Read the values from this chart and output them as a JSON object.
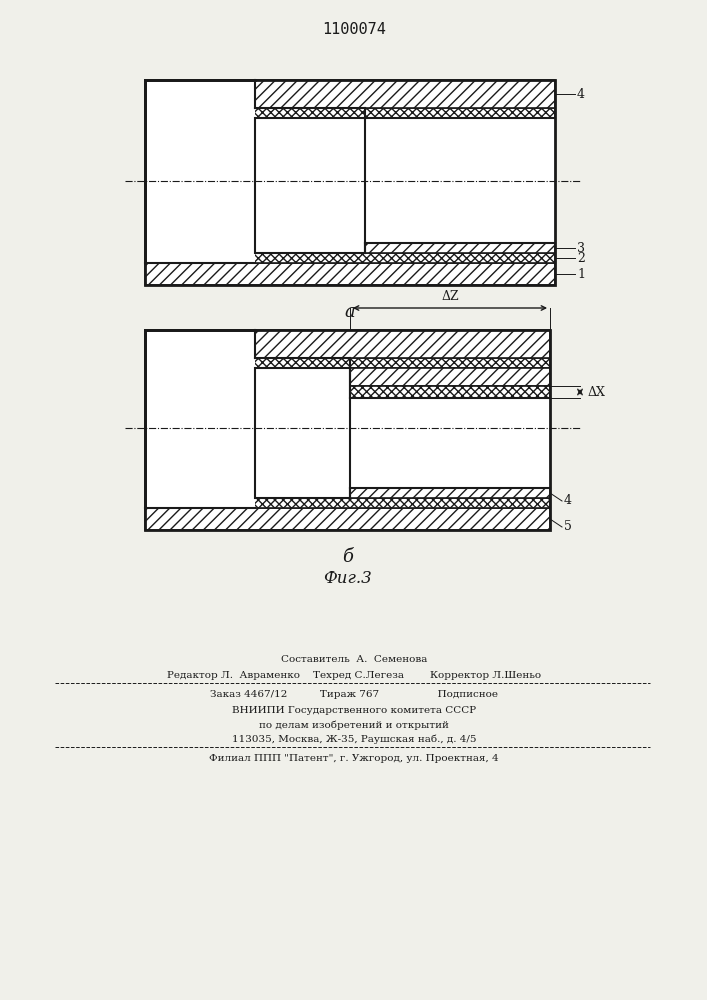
{
  "title": "1100074",
  "fig_label": "Фиг.3",
  "subfig_a": "а",
  "subfig_b": "б",
  "dz_label": "ΔZ",
  "dx_label": "ΔX",
  "footer_line1": "Составитель  А.  Семенова",
  "footer_line2": "Редактор Л.  Авраменко    Техред С.Легеза        Корректор Л.Шеньо",
  "footer_line3": "Заказ 4467/12          Тираж 767                  Подписное",
  "footer_line4": "ВНИИПИ Государственного комитета СССР",
  "footer_line5": "по делам изобретений и открытий",
  "footer_line6": "113035, Москва, Ж-35, Раушская наб., д. 4/5",
  "footer_line7": "Филиал ППП \"Патент\", г. Ужгород, ул. Проектная, 4",
  "bg_color": "#f0f0ea",
  "line_color": "#1a1a1a"
}
